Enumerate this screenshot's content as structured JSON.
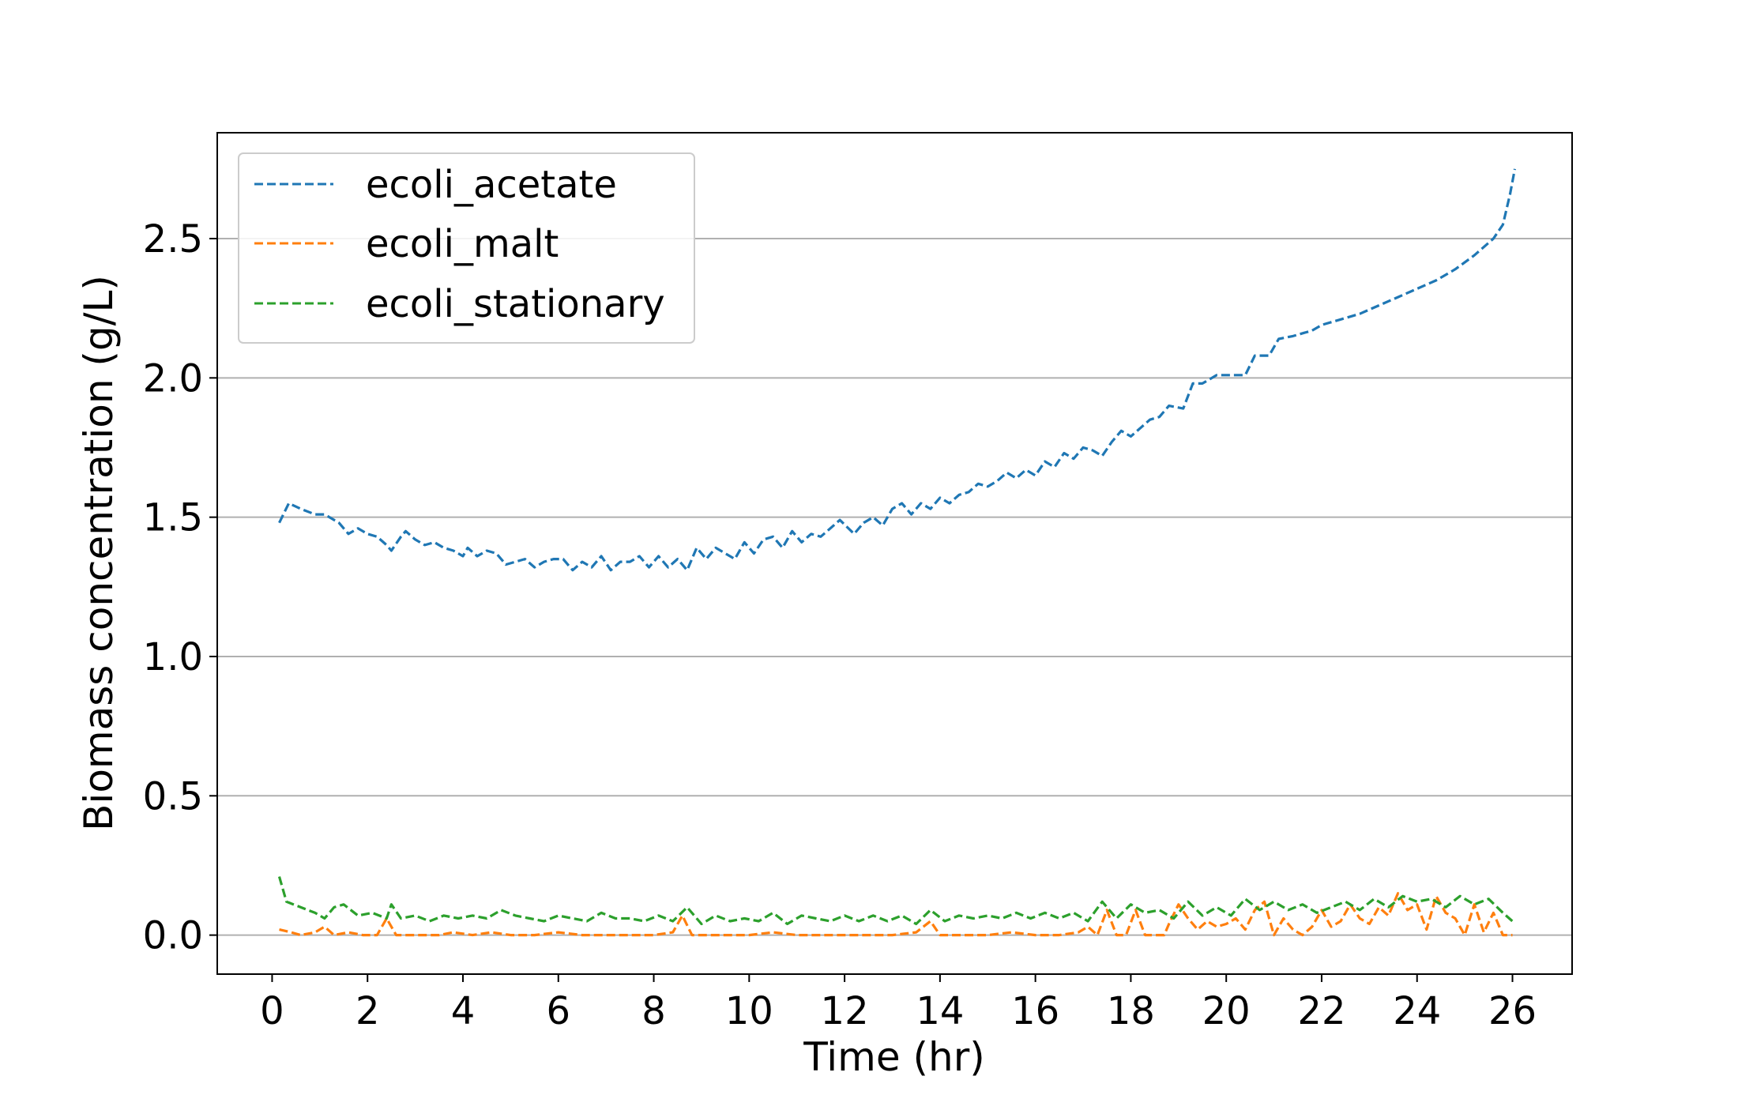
{
  "chart_data": {
    "type": "line",
    "title": "",
    "xlabel": "Time (hr)",
    "ylabel": "Biomass concentration (g/L)",
    "xlim": [
      -1.15,
      27.25
    ],
    "ylim": [
      -0.14,
      2.88
    ],
    "xticks": [
      0,
      2,
      4,
      6,
      8,
      10,
      12,
      14,
      16,
      18,
      20,
      22,
      24,
      26
    ],
    "xtick_labels": [
      "0",
      "2",
      "4",
      "6",
      "8",
      "10",
      "12",
      "14",
      "16",
      "18",
      "20",
      "22",
      "24",
      "26"
    ],
    "yticks": [
      0.0,
      0.5,
      1.0,
      1.5,
      2.0,
      2.5
    ],
    "ytick_labels": [
      "0.0",
      "0.5",
      "1.0",
      "1.5",
      "2.0",
      "2.5"
    ],
    "grid": "y-major",
    "legend_position": "upper-left",
    "line_style": "dashed",
    "series": [
      {
        "name": "ecoli_acetate",
        "color": "#1f77b4",
        "points": [
          [
            0.15,
            1.48
          ],
          [
            0.35,
            1.55
          ],
          [
            0.6,
            1.53
          ],
          [
            0.9,
            1.51
          ],
          [
            1.1,
            1.51
          ],
          [
            1.4,
            1.48
          ],
          [
            1.6,
            1.44
          ],
          [
            1.8,
            1.46
          ],
          [
            2.0,
            1.44
          ],
          [
            2.2,
            1.43
          ],
          [
            2.4,
            1.4
          ],
          [
            2.5,
            1.38
          ],
          [
            2.7,
            1.43
          ],
          [
            2.8,
            1.45
          ],
          [
            3.0,
            1.42
          ],
          [
            3.2,
            1.4
          ],
          [
            3.4,
            1.41
          ],
          [
            3.6,
            1.39
          ],
          [
            3.8,
            1.38
          ],
          [
            4.0,
            1.36
          ],
          [
            4.1,
            1.39
          ],
          [
            4.3,
            1.36
          ],
          [
            4.5,
            1.38
          ],
          [
            4.7,
            1.37
          ],
          [
            4.9,
            1.33
          ],
          [
            5.1,
            1.34
          ],
          [
            5.3,
            1.35
          ],
          [
            5.5,
            1.32
          ],
          [
            5.7,
            1.34
          ],
          [
            5.9,
            1.35
          ],
          [
            6.1,
            1.35
          ],
          [
            6.3,
            1.31
          ],
          [
            6.5,
            1.34
          ],
          [
            6.7,
            1.32
          ],
          [
            6.9,
            1.36
          ],
          [
            7.1,
            1.31
          ],
          [
            7.3,
            1.34
          ],
          [
            7.5,
            1.34
          ],
          [
            7.7,
            1.36
          ],
          [
            7.9,
            1.32
          ],
          [
            8.1,
            1.36
          ],
          [
            8.3,
            1.32
          ],
          [
            8.5,
            1.35
          ],
          [
            8.7,
            1.31
          ],
          [
            8.9,
            1.39
          ],
          [
            9.1,
            1.35
          ],
          [
            9.3,
            1.39
          ],
          [
            9.5,
            1.37
          ],
          [
            9.7,
            1.35
          ],
          [
            9.9,
            1.41
          ],
          [
            10.1,
            1.37
          ],
          [
            10.3,
            1.42
          ],
          [
            10.5,
            1.43
          ],
          [
            10.7,
            1.39
          ],
          [
            10.9,
            1.45
          ],
          [
            11.1,
            1.41
          ],
          [
            11.3,
            1.44
          ],
          [
            11.5,
            1.43
          ],
          [
            11.7,
            1.46
          ],
          [
            11.9,
            1.49
          ],
          [
            12.2,
            1.44
          ],
          [
            12.4,
            1.48
          ],
          [
            12.6,
            1.5
          ],
          [
            12.8,
            1.47
          ],
          [
            13.0,
            1.53
          ],
          [
            13.2,
            1.55
          ],
          [
            13.4,
            1.51
          ],
          [
            13.6,
            1.55
          ],
          [
            13.8,
            1.53
          ],
          [
            14.0,
            1.57
          ],
          [
            14.2,
            1.55
          ],
          [
            14.4,
            1.58
          ],
          [
            14.6,
            1.59
          ],
          [
            14.8,
            1.62
          ],
          [
            15.0,
            1.61
          ],
          [
            15.2,
            1.63
          ],
          [
            15.4,
            1.66
          ],
          [
            15.6,
            1.64
          ],
          [
            15.8,
            1.67
          ],
          [
            16.0,
            1.65
          ],
          [
            16.2,
            1.7
          ],
          [
            16.4,
            1.68
          ],
          [
            16.6,
            1.73
          ],
          [
            16.8,
            1.71
          ],
          [
            17.0,
            1.75
          ],
          [
            17.2,
            1.74
          ],
          [
            17.4,
            1.72
          ],
          [
            17.6,
            1.77
          ],
          [
            17.8,
            1.81
          ],
          [
            18.0,
            1.79
          ],
          [
            18.2,
            1.82
          ],
          [
            18.4,
            1.85
          ],
          [
            18.6,
            1.86
          ],
          [
            18.8,
            1.9
          ],
          [
            19.1,
            1.89
          ],
          [
            19.3,
            1.98
          ],
          [
            19.5,
            1.98
          ],
          [
            19.8,
            2.01
          ],
          [
            20.1,
            2.01
          ],
          [
            20.4,
            2.01
          ],
          [
            20.6,
            2.08
          ],
          [
            20.9,
            2.08
          ],
          [
            21.1,
            2.14
          ],
          [
            21.4,
            2.15
          ],
          [
            21.8,
            2.17
          ],
          [
            22.0,
            2.19
          ],
          [
            22.4,
            2.21
          ],
          [
            22.8,
            2.23
          ],
          [
            23.2,
            2.26
          ],
          [
            23.6,
            2.29
          ],
          [
            24.0,
            2.32
          ],
          [
            24.4,
            2.35
          ],
          [
            24.8,
            2.39
          ],
          [
            25.2,
            2.44
          ],
          [
            25.6,
            2.5
          ],
          [
            25.8,
            2.55
          ],
          [
            25.95,
            2.66
          ],
          [
            26.05,
            2.75
          ]
        ]
      },
      {
        "name": "ecoli_malt",
        "color": "#ff7f0e",
        "points": [
          [
            0.15,
            0.02
          ],
          [
            0.4,
            0.01
          ],
          [
            0.6,
            0.0
          ],
          [
            0.9,
            0.01
          ],
          [
            1.1,
            0.03
          ],
          [
            1.3,
            0.0
          ],
          [
            1.6,
            0.01
          ],
          [
            1.9,
            0.0
          ],
          [
            2.2,
            0.0
          ],
          [
            2.4,
            0.06
          ],
          [
            2.6,
            0.0
          ],
          [
            3.0,
            0.0
          ],
          [
            3.5,
            0.0
          ],
          [
            3.8,
            0.01
          ],
          [
            4.2,
            0.0
          ],
          [
            4.6,
            0.01
          ],
          [
            5.0,
            0.0
          ],
          [
            5.5,
            0.0
          ],
          [
            6.0,
            0.01
          ],
          [
            6.5,
            0.0
          ],
          [
            7.0,
            0.0
          ],
          [
            7.5,
            0.0
          ],
          [
            8.0,
            0.0
          ],
          [
            8.4,
            0.01
          ],
          [
            8.6,
            0.07
          ],
          [
            8.8,
            0.0
          ],
          [
            9.2,
            0.0
          ],
          [
            9.6,
            0.0
          ],
          [
            10.0,
            0.0
          ],
          [
            10.5,
            0.01
          ],
          [
            11.0,
            0.0
          ],
          [
            11.5,
            0.0
          ],
          [
            12.0,
            0.0
          ],
          [
            12.5,
            0.0
          ],
          [
            13.0,
            0.0
          ],
          [
            13.5,
            0.01
          ],
          [
            13.8,
            0.05
          ],
          [
            14.0,
            0.0
          ],
          [
            14.5,
            0.0
          ],
          [
            15.0,
            0.0
          ],
          [
            15.5,
            0.01
          ],
          [
            16.0,
            0.0
          ],
          [
            16.5,
            0.0
          ],
          [
            16.9,
            0.01
          ],
          [
            17.1,
            0.03
          ],
          [
            17.3,
            0.0
          ],
          [
            17.5,
            0.09
          ],
          [
            17.7,
            0.0
          ],
          [
            17.9,
            0.0
          ],
          [
            18.1,
            0.09
          ],
          [
            18.3,
            0.0
          ],
          [
            18.5,
            0.0
          ],
          [
            18.7,
            0.0
          ],
          [
            18.8,
            0.04
          ],
          [
            19.0,
            0.11
          ],
          [
            19.2,
            0.06
          ],
          [
            19.4,
            0.02
          ],
          [
            19.6,
            0.05
          ],
          [
            19.8,
            0.03
          ],
          [
            20.0,
            0.04
          ],
          [
            20.2,
            0.06
          ],
          [
            20.4,
            0.02
          ],
          [
            20.6,
            0.09
          ],
          [
            20.8,
            0.12
          ],
          [
            21.0,
            0.0
          ],
          [
            21.2,
            0.06
          ],
          [
            21.4,
            0.02
          ],
          [
            21.6,
            0.0
          ],
          [
            21.8,
            0.03
          ],
          [
            22.0,
            0.09
          ],
          [
            22.2,
            0.03
          ],
          [
            22.4,
            0.05
          ],
          [
            22.6,
            0.11
          ],
          [
            22.8,
            0.06
          ],
          [
            23.0,
            0.04
          ],
          [
            23.2,
            0.1
          ],
          [
            23.4,
            0.07
          ],
          [
            23.6,
            0.15
          ],
          [
            23.8,
            0.09
          ],
          [
            24.0,
            0.11
          ],
          [
            24.2,
            0.02
          ],
          [
            24.4,
            0.14
          ],
          [
            24.6,
            0.08
          ],
          [
            24.8,
            0.06
          ],
          [
            25.0,
            0.0
          ],
          [
            25.2,
            0.11
          ],
          [
            25.4,
            0.01
          ],
          [
            25.6,
            0.08
          ],
          [
            25.8,
            0.0
          ],
          [
            26.0,
            0.0
          ]
        ]
      },
      {
        "name": "ecoli_stationary",
        "color": "#2ca02c",
        "points": [
          [
            0.15,
            0.21
          ],
          [
            0.3,
            0.12
          ],
          [
            0.6,
            0.1
          ],
          [
            0.9,
            0.08
          ],
          [
            1.1,
            0.06
          ],
          [
            1.3,
            0.1
          ],
          [
            1.5,
            0.11
          ],
          [
            1.8,
            0.07
          ],
          [
            2.1,
            0.08
          ],
          [
            2.4,
            0.06
          ],
          [
            2.5,
            0.11
          ],
          [
            2.7,
            0.06
          ],
          [
            3.0,
            0.07
          ],
          [
            3.3,
            0.05
          ],
          [
            3.6,
            0.07
          ],
          [
            3.9,
            0.06
          ],
          [
            4.2,
            0.07
          ],
          [
            4.5,
            0.06
          ],
          [
            4.8,
            0.09
          ],
          [
            5.1,
            0.07
          ],
          [
            5.4,
            0.06
          ],
          [
            5.7,
            0.05
          ],
          [
            6.0,
            0.07
          ],
          [
            6.3,
            0.06
          ],
          [
            6.6,
            0.05
          ],
          [
            6.9,
            0.08
          ],
          [
            7.2,
            0.06
          ],
          [
            7.5,
            0.06
          ],
          [
            7.8,
            0.05
          ],
          [
            8.1,
            0.07
          ],
          [
            8.4,
            0.05
          ],
          [
            8.7,
            0.1
          ],
          [
            9.0,
            0.04
          ],
          [
            9.3,
            0.07
          ],
          [
            9.6,
            0.05
          ],
          [
            9.9,
            0.06
          ],
          [
            10.2,
            0.05
          ],
          [
            10.5,
            0.08
          ],
          [
            10.8,
            0.04
          ],
          [
            11.1,
            0.07
          ],
          [
            11.4,
            0.06
          ],
          [
            11.7,
            0.05
          ],
          [
            12.0,
            0.07
          ],
          [
            12.3,
            0.05
          ],
          [
            12.6,
            0.07
          ],
          [
            12.9,
            0.05
          ],
          [
            13.2,
            0.07
          ],
          [
            13.5,
            0.04
          ],
          [
            13.8,
            0.09
          ],
          [
            14.1,
            0.05
          ],
          [
            14.4,
            0.07
          ],
          [
            14.7,
            0.06
          ],
          [
            15.0,
            0.07
          ],
          [
            15.3,
            0.06
          ],
          [
            15.6,
            0.08
          ],
          [
            15.9,
            0.06
          ],
          [
            16.2,
            0.08
          ],
          [
            16.5,
            0.06
          ],
          [
            16.8,
            0.08
          ],
          [
            17.1,
            0.05
          ],
          [
            17.4,
            0.12
          ],
          [
            17.7,
            0.06
          ],
          [
            18.0,
            0.11
          ],
          [
            18.3,
            0.08
          ],
          [
            18.6,
            0.09
          ],
          [
            18.9,
            0.06
          ],
          [
            19.2,
            0.12
          ],
          [
            19.5,
            0.07
          ],
          [
            19.8,
            0.1
          ],
          [
            20.1,
            0.07
          ],
          [
            20.4,
            0.13
          ],
          [
            20.7,
            0.09
          ],
          [
            21.0,
            0.12
          ],
          [
            21.3,
            0.09
          ],
          [
            21.6,
            0.11
          ],
          [
            21.9,
            0.08
          ],
          [
            22.2,
            0.1
          ],
          [
            22.5,
            0.12
          ],
          [
            22.8,
            0.09
          ],
          [
            23.1,
            0.13
          ],
          [
            23.4,
            0.1
          ],
          [
            23.7,
            0.14
          ],
          [
            24.0,
            0.12
          ],
          [
            24.3,
            0.13
          ],
          [
            24.6,
            0.1
          ],
          [
            24.9,
            0.14
          ],
          [
            25.2,
            0.11
          ],
          [
            25.5,
            0.13
          ],
          [
            25.8,
            0.08
          ],
          [
            26.0,
            0.05
          ]
        ]
      }
    ]
  }
}
